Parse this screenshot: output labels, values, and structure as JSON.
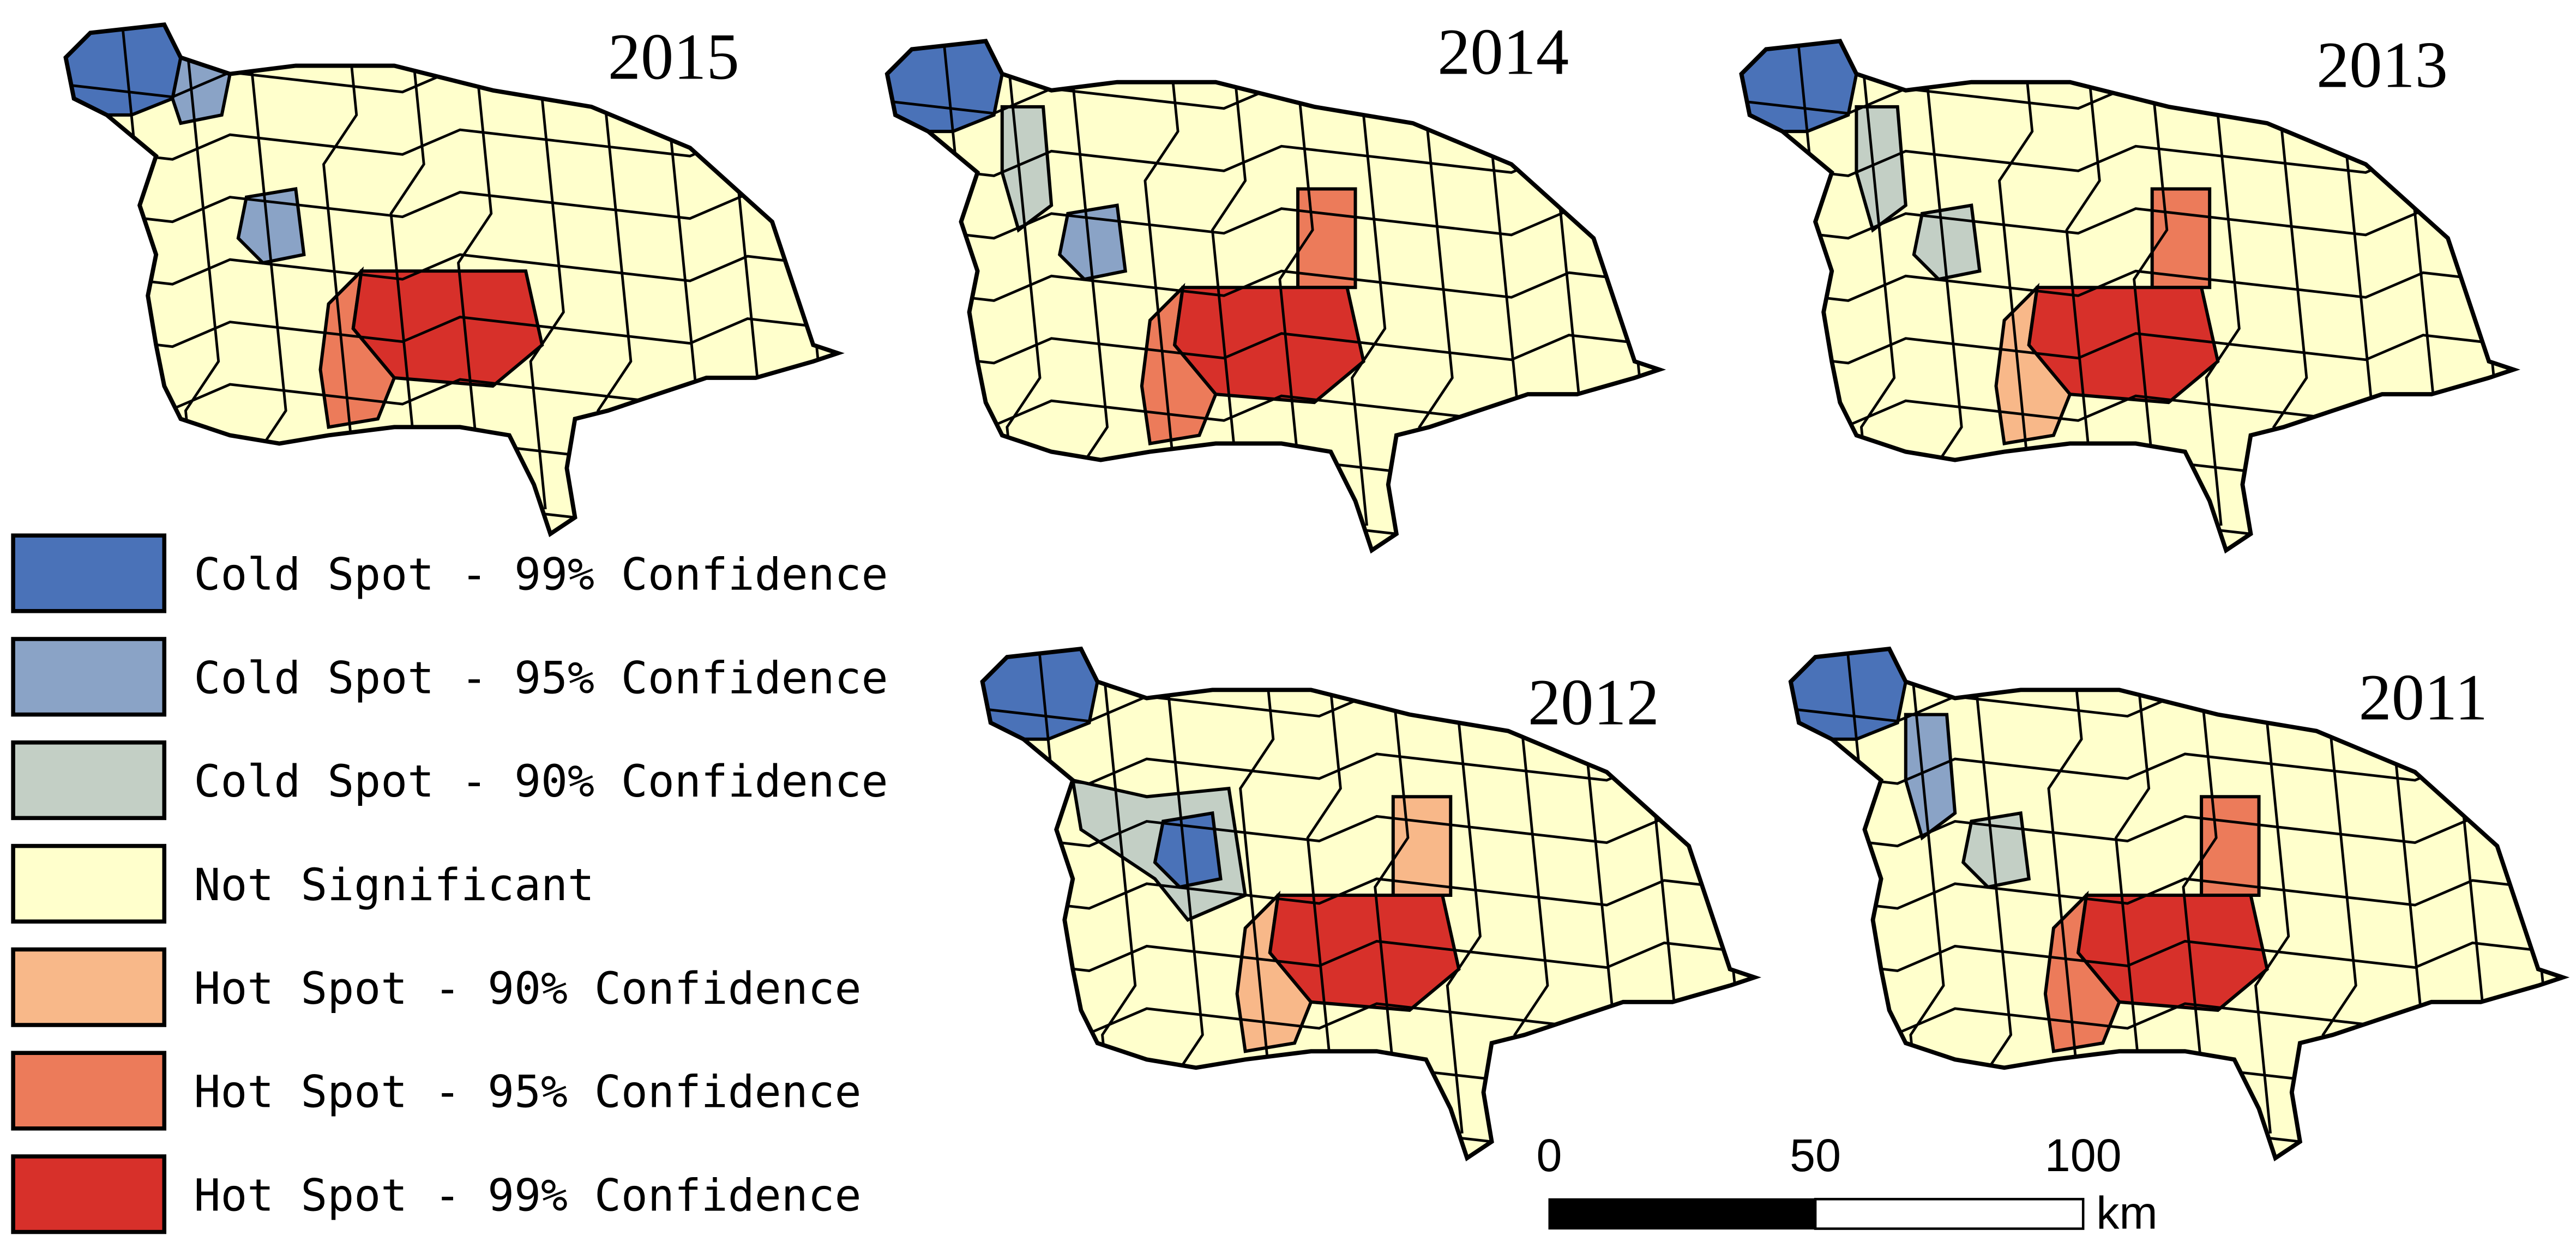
{
  "maps": [
    {
      "year": "2015"
    },
    {
      "year": "2014"
    },
    {
      "year": "2013"
    },
    {
      "year": "2012"
    },
    {
      "year": "2011"
    }
  ],
  "legend": [
    {
      "label": "Cold Spot - 99% Confidence",
      "color": "#4a72b8"
    },
    {
      "label": "Cold Spot - 95% Confidence",
      "color": "#8aa3c6"
    },
    {
      "label": "Cold Spot - 90% Confidence",
      "color": "#c3cfc5"
    },
    {
      "label": "Not Significant",
      "color": "#ffffcc"
    },
    {
      "label": "Hot Spot - 90% Confidence",
      "color": "#f8b889"
    },
    {
      "label": "Hot Spot - 95% Confidence",
      "color": "#ec7b5a"
    },
    {
      "label": "Hot Spot - 99% Confidence",
      "color": "#d7302a"
    }
  ],
  "scale_bar": {
    "ticks": [
      "0",
      "50",
      "100"
    ],
    "unit": "km"
  }
}
